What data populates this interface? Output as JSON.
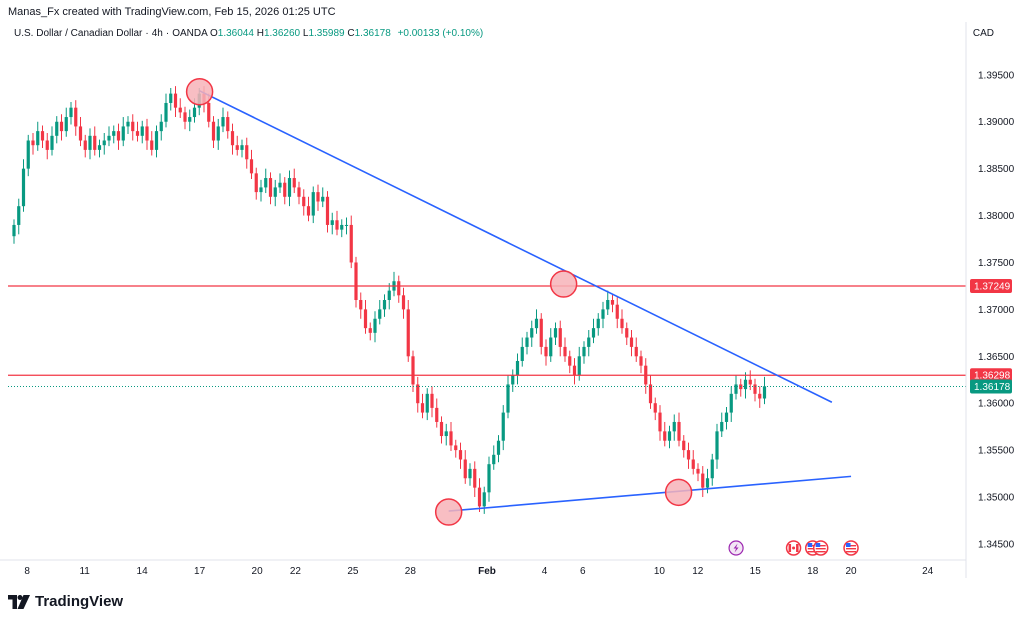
{
  "header": {
    "credit": "Manas_Fx created with TradingView.com, Feb 15, 2026 01:25 UTC",
    "symbol": "U.S. Dollar / Canadian Dollar",
    "interval": "4h",
    "source": "OANDA",
    "ohlc": {
      "o_label": "O",
      "o": "1.36044",
      "h_label": "H",
      "h": "1.36260",
      "l_label": "L",
      "l": "1.35989",
      "c_label": "C",
      "c": "1.36178",
      "change": "+0.00133 (+0.10%)"
    },
    "currency": "CAD"
  },
  "footer": {
    "brand": "TradingView"
  },
  "colors": {
    "up": "#089981",
    "down": "#f23645",
    "trendline": "#2962ff",
    "level": "#f23645",
    "marker_fill": "#f7b3b9",
    "marker_stroke": "#f23645",
    "axis_text": "#131722"
  },
  "chart_data": {
    "type": "candlestick",
    "y_axis": {
      "min": 1.3435,
      "max": 1.3985,
      "ticks": [
        "1.39500",
        "1.39000",
        "1.38500",
        "1.38000",
        "1.37500",
        "1.37000",
        "1.36500",
        "1.36000",
        "1.35500",
        "1.35000",
        "1.34500"
      ]
    },
    "x_axis": {
      "labels": [
        "8",
        "11",
        "14",
        "17",
        "20",
        "22",
        "25",
        "28",
        "Feb",
        "4",
        "6",
        "10",
        "12",
        "15",
        "18",
        "20",
        "24"
      ],
      "label_dates": [
        "2026-01-08",
        "2026-01-11",
        "2026-01-14",
        "2026-01-17",
        "2026-01-20",
        "2026-01-22",
        "2026-01-25",
        "2026-01-28",
        "2026-02-01",
        "2026-02-04",
        "2026-02-06",
        "2026-02-10",
        "2026-02-12",
        "2026-02-15",
        "2026-02-18",
        "2026-02-20",
        "2026-02-24"
      ]
    },
    "price_labels": [
      {
        "value": 1.37249,
        "text": "1.37249",
        "kind": "resistance"
      },
      {
        "value": 1.36298,
        "text": "1.36298",
        "kind": "resistance"
      },
      {
        "value": 1.36178,
        "text": "1.36178",
        "kind": "last"
      }
    ],
    "horizontal_levels": [
      1.37249,
      1.36298
    ],
    "last_price": 1.36178,
    "trendlines": [
      {
        "name": "descending",
        "from": {
          "date": "2026-01-17",
          "price": 1.3933
        },
        "to": {
          "date": "2026-02-19",
          "price": 1.3601
        }
      },
      {
        "name": "ascending",
        "from": {
          "date": "2026-01-30",
          "price": 1.3485
        },
        "to": {
          "date": "2026-02-20",
          "price": 1.3522
        }
      }
    ],
    "pivot_markers": [
      {
        "date": "2026-01-17",
        "price": 1.3932
      },
      {
        "date": "2026-02-05",
        "price": 1.3727
      },
      {
        "date": "2026-01-30",
        "price": 1.3484
      },
      {
        "date": "2026-02-11",
        "price": 1.3505
      }
    ],
    "events": [
      {
        "date": "2026-02-14",
        "icon": "lightning-icon"
      },
      {
        "date": "2026-02-17",
        "icon": "canada-flag-icon"
      },
      {
        "date": "2026-02-18",
        "icon": "us-flag-icon"
      },
      {
        "date": "2026-02-18",
        "icon": "us-flag-icon"
      },
      {
        "date": "2026-02-20",
        "icon": "us-flag-icon"
      }
    ],
    "candles_close_path": [
      1.379,
      1.381,
      1.385,
      1.388,
      1.3875,
      1.389,
      1.388,
      1.387,
      1.3885,
      1.39,
      1.389,
      1.3905,
      1.3915,
      1.3895,
      1.388,
      1.387,
      1.3885,
      1.387,
      1.3875,
      1.388,
      1.3885,
      1.389,
      1.388,
      1.3895,
      1.39,
      1.389,
      1.3885,
      1.3895,
      1.388,
      1.387,
      1.389,
      1.39,
      1.392,
      1.393,
      1.3915,
      1.391,
      1.39,
      1.3905,
      1.3915,
      1.393,
      1.392,
      1.39,
      1.388,
      1.3895,
      1.3905,
      1.389,
      1.3875,
      1.387,
      1.3875,
      1.386,
      1.3845,
      1.3825,
      1.383,
      1.384,
      1.382,
      1.383,
      1.3835,
      1.382,
      1.384,
      1.383,
      1.382,
      1.381,
      1.38,
      1.3825,
      1.3815,
      1.382,
      1.379,
      1.3795,
      1.3785,
      1.379,
      1.379,
      1.375,
      1.371,
      1.37,
      1.368,
      1.3675,
      1.369,
      1.37,
      1.371,
      1.372,
      1.373,
      1.3715,
      1.37,
      1.365,
      1.362,
      1.36,
      1.359,
      1.361,
      1.3595,
      1.358,
      1.3565,
      1.357,
      1.3555,
      1.355,
      1.354,
      1.352,
      1.353,
      1.351,
      1.349,
      1.3505,
      1.3535,
      1.3545,
      1.356,
      1.359,
      1.362,
      1.363,
      1.3645,
      1.366,
      1.367,
      1.368,
      1.369,
      1.366,
      1.365,
      1.367,
      1.368,
      1.366,
      1.365,
      1.364,
      1.363,
      1.365,
      1.366,
      1.367,
      1.368,
      1.369,
      1.37,
      1.371,
      1.3705,
      1.369,
      1.368,
      1.367,
      1.366,
      1.365,
      1.364,
      1.362,
      1.36,
      1.359,
      1.357,
      1.356,
      1.357,
      1.358,
      1.356,
      1.355,
      1.354,
      1.353,
      1.3525,
      1.351,
      1.352,
      1.354,
      1.357,
      1.358,
      1.359,
      1.361,
      1.362,
      1.3615,
      1.3625,
      1.362,
      1.361,
      1.3605,
      1.3618
    ]
  }
}
